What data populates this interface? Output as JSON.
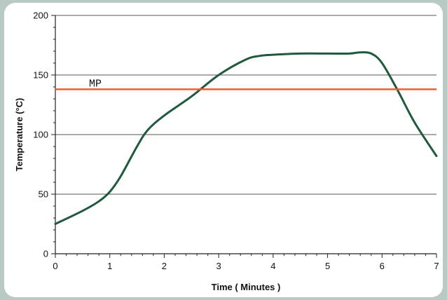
{
  "colors": {
    "background": "#b9c9c4",
    "panel": "#ffffff",
    "series_line": "#1f5a3c",
    "reference_line": "#e8622a",
    "gridline": "#555555"
  },
  "chart_data": {
    "type": "line",
    "title": "",
    "xlabel": "Time ( Minutes )",
    "ylabel": "Temperature (°C)",
    "xlim": [
      0,
      7
    ],
    "ylim": [
      0,
      200
    ],
    "x_ticks": [
      0,
      1,
      2,
      3,
      4,
      5,
      6,
      7
    ],
    "y_ticks": [
      0,
      50,
      100,
      150,
      200
    ],
    "grid": "horizontal",
    "series": [
      {
        "x": [
          0,
          0.5,
          0.8,
          1.0,
          1.2,
          1.5,
          1.7,
          2.0,
          2.5,
          3.0,
          3.5,
          3.75,
          4.0,
          4.5,
          5.0,
          5.4,
          5.6,
          5.8,
          6.0,
          6.3,
          6.6,
          7.0
        ],
        "y": [
          25,
          36,
          44,
          52,
          65,
          90,
          104,
          116,
          132,
          150,
          163,
          166,
          167,
          168,
          168,
          168,
          169,
          168,
          160,
          136,
          110,
          82
        ]
      }
    ],
    "reference_lines": [
      {
        "label": "MP",
        "y": 138
      }
    ]
  }
}
